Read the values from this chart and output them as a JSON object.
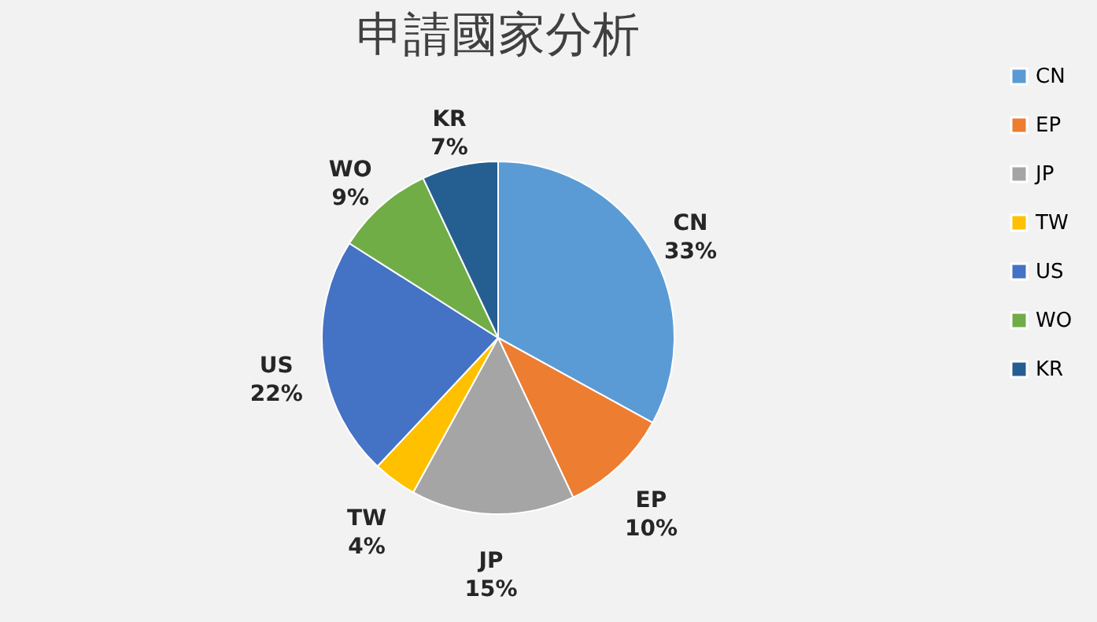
{
  "chart_data": {
    "type": "pie",
    "title": "申請國家分析",
    "categories": [
      "CN",
      "EP",
      "JP",
      "TW",
      "US",
      "WO",
      "KR"
    ],
    "values": [
      33,
      10,
      15,
      4,
      22,
      9,
      7
    ],
    "value_labels": [
      "33%",
      "10%",
      "15%",
      "4%",
      "22%",
      "9%",
      "7%"
    ],
    "colors": [
      "#5b9bd5",
      "#ed7d31",
      "#a5a5a5",
      "#ffc000",
      "#4472c4",
      "#70ad47",
      "#255e91"
    ],
    "legend": "right"
  }
}
